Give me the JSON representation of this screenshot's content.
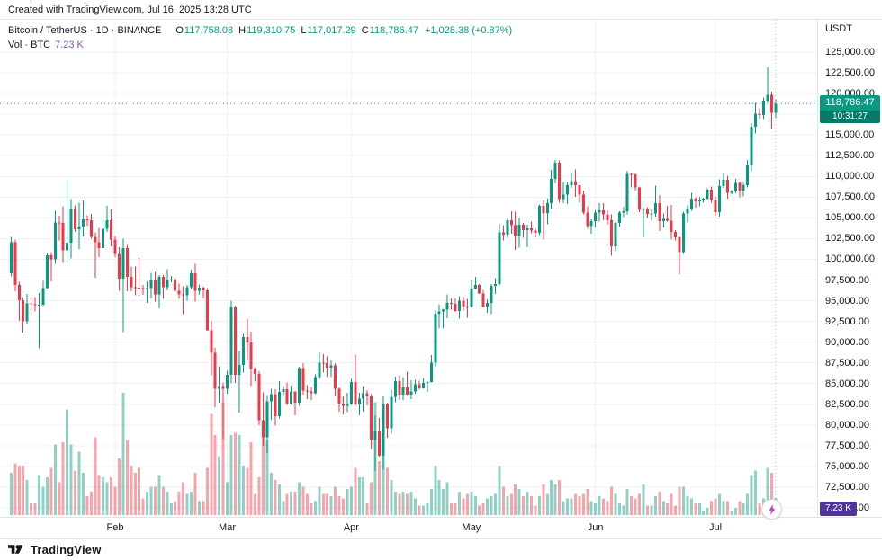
{
  "credit": "Created with TradingView.com, Jul 16, 2025 13:28 UTC",
  "legend": {
    "title": "Bitcoin / TetherUS · 1D · BINANCE",
    "ohlc": {
      "labels": {
        "o": "O",
        "h": "H",
        "l": "L",
        "c": "C"
      },
      "open": "117,758.08",
      "high": "119,310.75",
      "low": "117,017.29",
      "close": "118,786.47",
      "change": "+1,028.38 (+0.87%)"
    },
    "vol_label": "Vol · BTC",
    "vol_value": "7.23 K"
  },
  "price_axis": {
    "currency": "USDT",
    "max": 125000,
    "min": 70000,
    "step": 2500,
    "price_badge": {
      "value": "118,786.47",
      "countdown": "10:31:27"
    },
    "volume_badge": "7.23 K"
  },
  "time_axis": {
    "months": [
      {
        "label": "Feb",
        "index": 26
      },
      {
        "label": "Mar",
        "index": 54
      },
      {
        "label": "Apr",
        "index": 85
      },
      {
        "label": "May",
        "index": 115
      },
      {
        "label": "Jun",
        "index": 146
      },
      {
        "label": "Jul",
        "index": 176
      }
    ]
  },
  "footer": {
    "brand": "TradingView"
  },
  "colors": {
    "up": "#089981",
    "down": "#f23645",
    "vol_up": "rgba(8,153,129,0.45)",
    "vol_down": "rgba(242,54,69,0.45)",
    "grid": "#eef1f6",
    "axis_border": "#e0e3eb",
    "text": "#131722",
    "volume_value": "#7e57c2",
    "volume_badge": "#53349f",
    "countdown_bg": "#067a68",
    "current_bar_line": "#b2b5be"
  },
  "chart_data": {
    "type": "candlestick",
    "title": "Bitcoin / TetherUS · 1D · BINANCE",
    "symbol": "BTCUSDT",
    "exchange": "BINANCE",
    "interval": "1D",
    "quote_currency": "USDT",
    "ylim": [
      70000,
      125000
    ],
    "grid": true,
    "start_date": "2025-01-06",
    "end_date": "2025-07-16",
    "format": [
      "high",
      "low",
      "close",
      "volume_kBTC"
    ],
    "open_rule": "previous_close",
    "first_open": 98314,
    "last_price": 118786.47,
    "last_volume_kBTC": 7.23,
    "current_bar": {
      "open": 117758.08,
      "high": 119310.75,
      "low": 117017.29,
      "close": 118786.47
    },
    "candles": [
      [
        102724,
        97914,
        102078,
        18
      ],
      [
        102366,
        96156,
        96922,
        22
      ],
      [
        97264,
        92540,
        95043,
        21
      ],
      [
        95382,
        91130,
        92484,
        21
      ],
      [
        95836,
        92232,
        94701,
        15
      ],
      [
        95459,
        93803,
        94566,
        5
      ],
      [
        95450,
        93712,
        94488,
        5
      ],
      [
        95940,
        89256,
        94516,
        17
      ],
      [
        97371,
        94346,
        96534,
        12
      ],
      [
        100681,
        96444,
        100504,
        16
      ],
      [
        100866,
        97335,
        99987,
        20
      ],
      [
        105865,
        99464,
        104462,
        30
      ],
      [
        105280,
        102277,
        104408,
        14
      ],
      [
        106422,
        99551,
        101089,
        31
      ],
      [
        109588,
        99550,
        102016,
        45
      ],
      [
        107240,
        100110,
        106146,
        30
      ],
      [
        106486,
        103339,
        103653,
        19
      ],
      [
        106820,
        101252,
        103960,
        27
      ],
      [
        107096,
        102750,
        104819,
        18
      ],
      [
        105285,
        104075,
        104714,
        8
      ],
      [
        105500,
        102500,
        102682,
        10
      ],
      [
        103260,
        97777,
        102082,
        33
      ],
      [
        103800,
        100272,
        101332,
        17
      ],
      [
        104782,
        101425,
        103703,
        16
      ],
      [
        106457,
        103278,
        104735,
        14
      ],
      [
        106012,
        101560,
        102405,
        16
      ],
      [
        102790,
        100279,
        100655,
        12
      ],
      [
        101456,
        96210,
        97688,
        24
      ],
      [
        102500,
        91231,
        101328,
        52
      ],
      [
        101732,
        96150,
        97871,
        32
      ],
      [
        99149,
        96155,
        96615,
        21
      ],
      [
        99120,
        95676,
        96593,
        18
      ],
      [
        100138,
        95628,
        96529,
        20
      ],
      [
        96880,
        95688,
        96482,
        7
      ],
      [
        97323,
        94713,
        96500,
        10
      ],
      [
        98345,
        95256,
        97437,
        12
      ],
      [
        98478,
        94876,
        95747,
        12
      ],
      [
        98119,
        94088,
        97885,
        17
      ],
      [
        98083,
        95217,
        96608,
        12
      ],
      [
        98826,
        96252,
        97508,
        10
      ],
      [
        97972,
        97224,
        97569,
        5
      ],
      [
        97704,
        96051,
        96175,
        6
      ],
      [
        97042,
        95235,
        95773,
        10
      ],
      [
        96753,
        93388,
        95639,
        14
      ],
      [
        96899,
        95029,
        96635,
        9
      ],
      [
        98740,
        96437,
        98333,
        10
      ],
      [
        99475,
        94871,
        96181,
        18
      ],
      [
        96979,
        95771,
        96577,
        6
      ],
      [
        96675,
        95253,
        96273,
        6
      ],
      [
        96500,
        91349,
        91418,
        20
      ],
      [
        92540,
        86010,
        88736,
        43
      ],
      [
        89286,
        82131,
        84347,
        34
      ],
      [
        87078,
        82716,
        84705,
        25
      ],
      [
        85120,
        78248,
        84373,
        48
      ],
      [
        86558,
        83794,
        86031,
        14
      ],
      [
        95000,
        85040,
        94270,
        34
      ],
      [
        94422,
        85081,
        86065,
        35
      ],
      [
        88911,
        81500,
        87222,
        34
      ],
      [
        91000,
        86334,
        90606,
        21
      ],
      [
        92810,
        87836,
        89962,
        20
      ],
      [
        91283,
        84717,
        86742,
        31
      ],
      [
        86898,
        85247,
        86154,
        9
      ],
      [
        86500,
        80000,
        80601,
        16
      ],
      [
        83955,
        77459,
        78532,
        34
      ],
      [
        83617,
        76606,
        82862,
        32
      ],
      [
        84358,
        80607,
        83722,
        18
      ],
      [
        84336,
        79939,
        81066,
        15
      ],
      [
        85309,
        80818,
        83969,
        13
      ],
      [
        84676,
        83618,
        84343,
        6
      ],
      [
        85117,
        82386,
        82579,
        9
      ],
      [
        84756,
        82451,
        84075,
        10
      ],
      [
        84021,
        81184,
        82718,
        10
      ],
      [
        87047,
        82328,
        86854,
        14
      ],
      [
        87463,
        83660,
        84167,
        12
      ],
      [
        84803,
        83129,
        84043,
        9
      ],
      [
        84528,
        83012,
        83832,
        5
      ],
      [
        86108,
        83747,
        85787,
        6
      ],
      [
        88772,
        85505,
        87498,
        12
      ],
      [
        88543,
        86322,
        87471,
        9
      ],
      [
        88290,
        85861,
        86900,
        9
      ],
      [
        87786,
        85784,
        87177,
        8
      ],
      [
        87489,
        83585,
        84353,
        12
      ],
      [
        84559,
        81617,
        82597,
        8
      ],
      [
        83500,
        81283,
        82334,
        7
      ],
      [
        83909,
        81555,
        82549,
        11
      ],
      [
        85559,
        82424,
        85169,
        12
      ],
      [
        88500,
        82320,
        82488,
        20
      ],
      [
        83909,
        81200,
        83156,
        16
      ],
      [
        84720,
        81659,
        83843,
        16
      ],
      [
        84207,
        82377,
        83504,
        5
      ],
      [
        83704,
        77097,
        78214,
        14
      ],
      [
        81119,
        74436,
        79235,
        48
      ],
      [
        80823,
        76198,
        76272,
        23
      ],
      [
        83541,
        74620,
        82574,
        45
      ],
      [
        82700,
        78464,
        79591,
        20
      ],
      [
        84247,
        78936,
        83404,
        15
      ],
      [
        85856,
        82769,
        85287,
        10
      ],
      [
        86014,
        83027,
        83684,
        9
      ],
      [
        85785,
        83034,
        84542,
        10
      ],
      [
        86429,
        83592,
        83668,
        9
      ],
      [
        85428,
        83105,
        84033,
        10
      ],
      [
        85450,
        83752,
        84895,
        7
      ],
      [
        85329,
        84278,
        84450,
        4
      ],
      [
        85596,
        84362,
        85063,
        4
      ],
      [
        85306,
        83976,
        85174,
        5
      ],
      [
        88455,
        85143,
        87518,
        11
      ],
      [
        93817,
        87074,
        93441,
        21
      ],
      [
        94535,
        91697,
        93699,
        15
      ],
      [
        94016,
        91684,
        93943,
        11
      ],
      [
        95768,
        92898,
        94720,
        14
      ],
      [
        95251,
        93927,
        94646,
        5
      ],
      [
        95301,
        93623,
        93754,
        5
      ],
      [
        95550,
        92830,
        94978,
        10
      ],
      [
        95490,
        93800,
        94284,
        7
      ],
      [
        95200,
        92953,
        94207,
        9
      ],
      [
        97437,
        94153,
        96492,
        10
      ],
      [
        97905,
        96368,
        96910,
        8
      ],
      [
        97000,
        95823,
        95891,
        4
      ],
      [
        96329,
        94178,
        94315,
        5
      ],
      [
        95193,
        93519,
        94748,
        7
      ],
      [
        97000,
        93399,
        96802,
        8
      ],
      [
        97742,
        95821,
        97032,
        9
      ],
      [
        104324,
        96872,
        103241,
        21
      ],
      [
        104100,
        102300,
        102970,
        12
      ],
      [
        105000,
        102600,
        104696,
        8
      ],
      [
        105819,
        103109,
        104106,
        9
      ],
      [
        105760,
        101109,
        102812,
        13
      ],
      [
        104993,
        101426,
        104169,
        11
      ],
      [
        104389,
        102613,
        103539,
        8
      ],
      [
        104192,
        101463,
        103744,
        10
      ],
      [
        104550,
        103155,
        103489,
        8
      ],
      [
        103720,
        102632,
        103191,
        4
      ],
      [
        106600,
        102933,
        106446,
        8
      ],
      [
        107108,
        102389,
        105606,
        13
      ],
      [
        107307,
        104222,
        106791,
        9
      ],
      [
        110797,
        106127,
        109678,
        15
      ],
      [
        111980,
        109183,
        111673,
        13
      ],
      [
        111919,
        106812,
        107287,
        15
      ],
      [
        109295,
        106766,
        107791,
        6
      ],
      [
        109263,
        106659,
        108929,
        7
      ],
      [
        110450,
        108631,
        109440,
        7
      ],
      [
        110841,
        107512,
        108964,
        9
      ],
      [
        108889,
        106812,
        107802,
        8
      ],
      [
        108279,
        105398,
        105641,
        9
      ],
      [
        106385,
        103731,
        103998,
        11
      ],
      [
        104824,
        103070,
        104598,
        6
      ],
      [
        105885,
        103842,
        105652,
        5
      ],
      [
        106800,
        104550,
        105881,
        8
      ],
      [
        106761,
        104734,
        105432,
        7
      ],
      [
        105890,
        104146,
        104732,
        6
      ],
      [
        105438,
        100431,
        101576,
        12
      ],
      [
        104500,
        100967,
        104409,
        9
      ],
      [
        105779,
        103931,
        105615,
        5
      ],
      [
        106341,
        105113,
        105793,
        4
      ],
      [
        110664,
        105402,
        110294,
        11
      ],
      [
        110407,
        108665,
        110257,
        8
      ],
      [
        110303,
        108272,
        108686,
        7
      ],
      [
        108760,
        105678,
        105979,
        9
      ],
      [
        106180,
        102664,
        106090,
        13
      ],
      [
        106280,
        104966,
        105472,
        4
      ],
      [
        105994,
        104684,
        105552,
        4
      ],
      [
        108915,
        105159,
        106796,
        8
      ],
      [
        107776,
        103387,
        104601,
        10
      ],
      [
        105527,
        103839,
        104883,
        6
      ],
      [
        106453,
        104555,
        104684,
        5
      ],
      [
        106533,
        102367,
        103290,
        9
      ],
      [
        103519,
        102300,
        102658,
        4
      ],
      [
        102764,
        98200,
        100853,
        12
      ],
      [
        105747,
        100632,
        105511,
        12
      ],
      [
        106500,
        104469,
        106059,
        8
      ],
      [
        108045,
        105836,
        107314,
        7
      ],
      [
        107491,
        106207,
        106979,
        5
      ],
      [
        107507,
        106378,
        107078,
        5
      ],
      [
        107411,
        106851,
        107331,
        2
      ],
      [
        108564,
        107203,
        108385,
        3
      ],
      [
        108798,
        106819,
        107167,
        6
      ],
      [
        107580,
        105300,
        105698,
        7
      ],
      [
        109650,
        105147,
        108824,
        9
      ],
      [
        110386,
        108601,
        109602,
        6
      ],
      [
        110080,
        107305,
        108040,
        6
      ],
      [
        108350,
        107835,
        108217,
        2
      ],
      [
        109700,
        107960,
        109216,
        3
      ],
      [
        109396,
        107480,
        108301,
        6
      ],
      [
        109230,
        107600,
        108953,
        5
      ],
      [
        112000,
        108648,
        111327,
        9
      ],
      [
        116450,
        110600,
        115987,
        17
      ],
      [
        118856,
        115165,
        117571,
        19
      ],
      [
        118200,
        116951,
        117419,
        5
      ],
      [
        119500,
        116900,
        119117,
        7
      ],
      [
        123218,
        118935,
        119850,
        20
      ],
      [
        120250,
        115736,
        117678,
        18
      ],
      [
        119310.75,
        117017.29,
        118786.47,
        7.23
      ]
    ]
  }
}
